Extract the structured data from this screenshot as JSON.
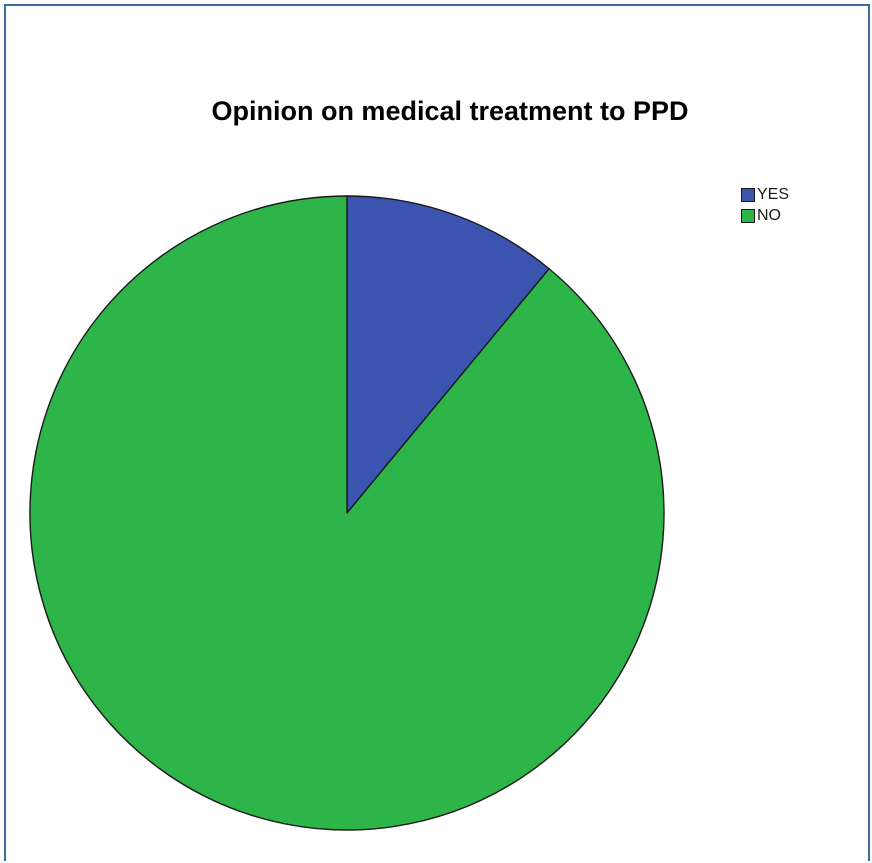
{
  "chart_data": {
    "type": "pie",
    "title": "Opinion on medical treatment to PPD",
    "categories": [
      "YES",
      "NO"
    ],
    "values": [
      11,
      89
    ],
    "colors": [
      "#3b54b0",
      "#2db54a"
    ],
    "legend": "top-right",
    "start_angle": "12 o'clock",
    "direction": "clockwise"
  }
}
